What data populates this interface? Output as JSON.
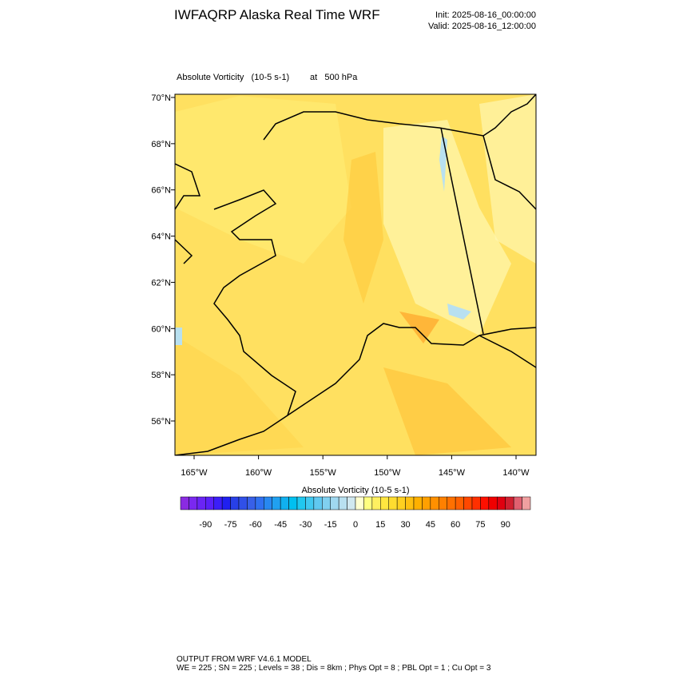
{
  "header": {
    "title": "IWFAQRP Alaska Real Time WRF",
    "init": "Init: 2025-08-16_00:00:00",
    "valid": "Valid: 2025-08-16_12:00:00"
  },
  "map": {
    "field_label": "Absolute Vorticity   (10-5 s-1)",
    "level_label": "at   500 hPa",
    "lat_labels": [
      "70°N",
      "68°N",
      "66°N",
      "64°N",
      "62°N",
      "60°N",
      "58°N",
      "56°N"
    ],
    "lon_labels": [
      "165°W",
      "160°W",
      "155°W",
      "150°W",
      "145°W",
      "140°W"
    ]
  },
  "colorbar": {
    "title": "Absolute Vorticity  (10-5 s-1)",
    "colors": [
      "#8a2be2",
      "#7a28f0",
      "#6a24f5",
      "#5a20f8",
      "#3c1ef8",
      "#2020f0",
      "#2840e8",
      "#3050e8",
      "#3860e8",
      "#3070f0",
      "#2888f0",
      "#20a0f0",
      "#10b0f0",
      "#00c0f0",
      "#20c8f0",
      "#40c8f0",
      "#60c8f0",
      "#80d0f0",
      "#a0d8f0",
      "#b8e0f0",
      "#d0e8f0",
      "#ffffd0",
      "#ffff80",
      "#fff060",
      "#ffe640",
      "#ffdc30",
      "#ffd020",
      "#ffc010",
      "#ffb000",
      "#ffa000",
      "#ff9000",
      "#ff8000",
      "#ff7000",
      "#ff6000",
      "#ff4800",
      "#ff3000",
      "#ff1000",
      "#f00000",
      "#e00010",
      "#d02030",
      "#e06070",
      "#f0a0a0"
    ],
    "labels": [
      -90,
      -75,
      -60,
      -45,
      -30,
      -15,
      0,
      15,
      30,
      45,
      60,
      75,
      90
    ]
  },
  "footer": {
    "line1": "OUTPUT FROM WRF V4.6.1 MODEL",
    "line2": "WE = 225 ; SN = 225 ; Levels = 38 ; Dis = 8km ; Phys Opt = 8 ; PBL Opt = 1 ; Cu Opt = 3"
  }
}
